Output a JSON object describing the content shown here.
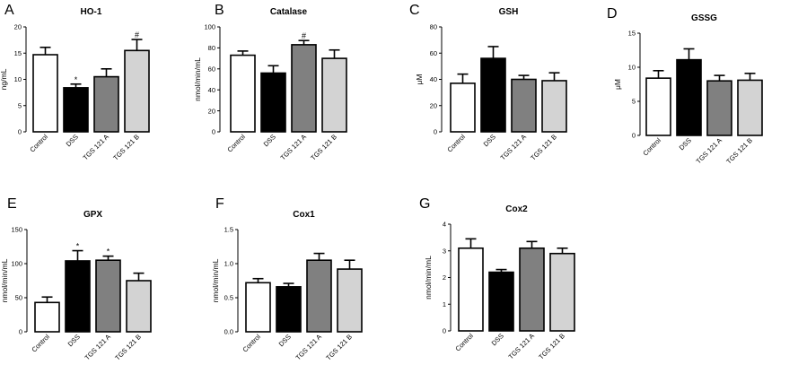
{
  "figure": {
    "categories": [
      "Control",
      "DSS",
      "TGS 121 A",
      "TGS 121 B"
    ],
    "bar_colors": [
      "#ffffff",
      "#000000",
      "#808080",
      "#d3d3d3"
    ],
    "edge_color": "#000000"
  },
  "chart_data": [
    {
      "type": "bar",
      "letter": "A",
      "title": "HO-1",
      "ylabel": "ng/mL",
      "categories": [
        "Control",
        "DSS",
        "TGS 121 A",
        "TGS 121 B"
      ],
      "values": [
        14.7,
        8.4,
        10.5,
        15.5
      ],
      "errors": [
        1.4,
        0.7,
        1.5,
        2.1
      ],
      "marks": [
        "",
        "*",
        "",
        "#"
      ],
      "ylim": [
        0,
        20
      ],
      "yticks": [
        0,
        5,
        10,
        15,
        20
      ],
      "ytick_labels": [
        "0",
        "5",
        "10",
        "15",
        "20"
      ]
    },
    {
      "type": "bar",
      "letter": "B",
      "title": "Catalase",
      "ylabel": "nmol/min/mL",
      "categories": [
        "Control",
        "DSS",
        "TGS 121 A",
        "TGS 121 B"
      ],
      "values": [
        73,
        56,
        83,
        70
      ],
      "errors": [
        4,
        7,
        4,
        8
      ],
      "marks": [
        "",
        "",
        "#",
        ""
      ],
      "ylim": [
        0,
        100
      ],
      "yticks": [
        0,
        20,
        40,
        60,
        80,
        100
      ],
      "ytick_labels": [
        "0",
        "20",
        "40",
        "60",
        "80",
        "100"
      ]
    },
    {
      "type": "bar",
      "letter": "C",
      "title": "GSH",
      "ylabel": "μM",
      "categories": [
        "Control",
        "DSS",
        "TGS 121 A",
        "TGS 121 B"
      ],
      "values": [
        37,
        56,
        40,
        39
      ],
      "errors": [
        7,
        9,
        3,
        6
      ],
      "marks": [
        "",
        "",
        "",
        ""
      ],
      "ylim": [
        0,
        80
      ],
      "yticks": [
        0,
        20,
        40,
        60,
        80
      ],
      "ytick_labels": [
        "0",
        "20",
        "40",
        "60",
        "80"
      ]
    },
    {
      "type": "bar",
      "letter": "D",
      "title": "GSSG",
      "ylabel": "μM",
      "categories": [
        "Control",
        "DSS",
        "TGS 121 A",
        "TGS 121 B"
      ],
      "values": [
        8.4,
        11.1,
        8.0,
        8.1
      ],
      "errors": [
        1.1,
        1.6,
        0.8,
        1.0
      ],
      "marks": [
        "",
        "",
        "",
        ""
      ],
      "ylim": [
        0,
        15
      ],
      "yticks": [
        0,
        5,
        10,
        15
      ],
      "ytick_labels": [
        "0",
        "5",
        "10",
        "15"
      ]
    },
    {
      "type": "bar",
      "letter": "E",
      "title": "GPX",
      "ylabel": "nmol/min/mL",
      "categories": [
        "Control",
        "DSS",
        "TGS 121 A",
        "TGS 121 B"
      ],
      "values": [
        43,
        104,
        105,
        75
      ],
      "errors": [
        8,
        15,
        6,
        11
      ],
      "marks": [
        "",
        "*",
        "*",
        ""
      ],
      "ylim": [
        0,
        150
      ],
      "yticks": [
        0,
        50,
        100,
        150
      ],
      "ytick_labels": [
        "0",
        "50",
        "100",
        "150"
      ]
    },
    {
      "type": "bar",
      "letter": "F",
      "title": "Cox1",
      "ylabel": "nmol/min/mL",
      "categories": [
        "Control",
        "DSS",
        "TGS 121 A",
        "TGS 121 B"
      ],
      "values": [
        0.72,
        0.66,
        1.05,
        0.92
      ],
      "errors": [
        0.06,
        0.05,
        0.1,
        0.13
      ],
      "marks": [
        "",
        "",
        "",
        ""
      ],
      "ylim": [
        0,
        1.5
      ],
      "yticks": [
        0,
        0.5,
        1.0,
        1.5
      ],
      "ytick_labels": [
        "0.0",
        "0.5",
        "1.0",
        "1.5"
      ]
    },
    {
      "type": "bar",
      "letter": "G",
      "title": "Cox2",
      "ylabel": "nmol/min/mL",
      "categories": [
        "Control",
        "DSS",
        "TGS 121 A",
        "TGS 121 B"
      ],
      "values": [
        3.1,
        2.2,
        3.1,
        2.9
      ],
      "errors": [
        0.35,
        0.1,
        0.25,
        0.2
      ],
      "marks": [
        "",
        "",
        "",
        ""
      ],
      "ylim": [
        0,
        4
      ],
      "yticks": [
        0,
        1,
        2,
        3,
        4
      ],
      "ytick_labels": [
        "0",
        "1",
        "2",
        "3",
        "4"
      ]
    }
  ]
}
